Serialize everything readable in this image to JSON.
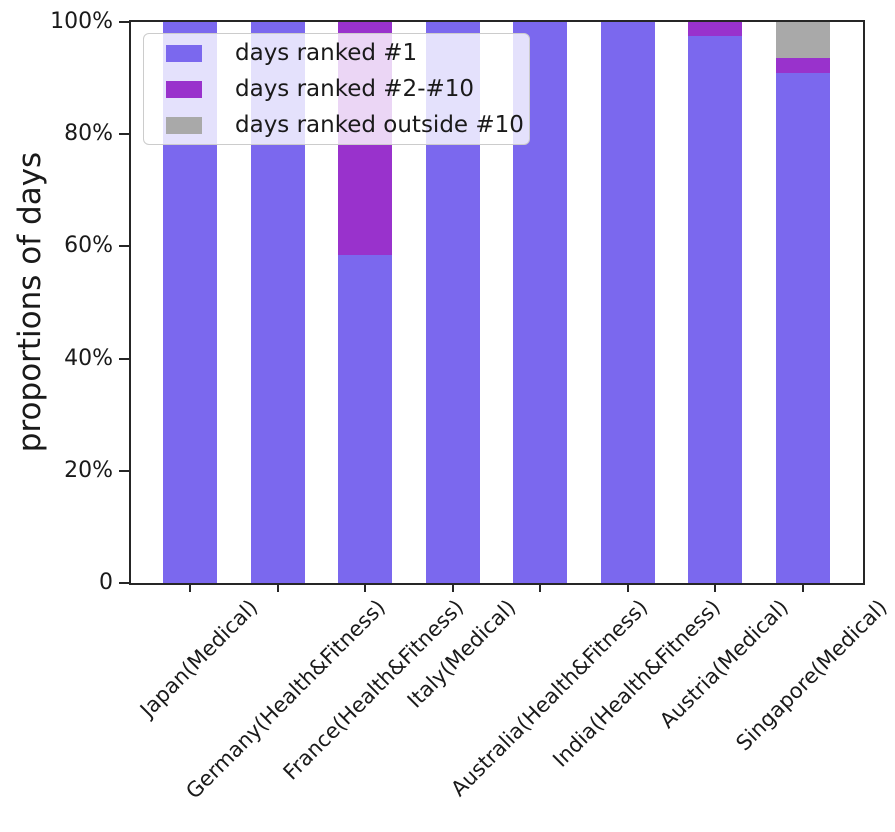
{
  "chart_data": {
    "type": "bar",
    "stacked": true,
    "title": "",
    "xlabel": "",
    "ylabel": "proportions of days",
    "categories": [
      "Japan(Medical)",
      "Germany(Health&Fitness)",
      "France(Health&Fitness)",
      "Italy(Medical)",
      "Australia(Health&Fitness)",
      "India(Health&Fitness)",
      "Austria(Medical)",
      "Singapore(Medical)"
    ],
    "series": [
      {
        "name": "days ranked #1",
        "color": "#7B68EE",
        "values": [
          100,
          100,
          58.5,
          100,
          100,
          100,
          97.5,
          91
        ]
      },
      {
        "name": "days ranked #2-#10",
        "color": "#9932CC",
        "values": [
          0,
          0,
          41.5,
          0,
          0,
          0,
          2.5,
          2.5
        ]
      },
      {
        "name": "days ranked outside #10",
        "color": "#A9A9A9",
        "values": [
          0,
          0,
          0,
          0,
          0,
          0,
          0,
          6.5
        ]
      }
    ],
    "ylim": [
      0,
      100
    ],
    "yticks": [
      {
        "value": 0,
        "label": "0"
      },
      {
        "value": 20,
        "label": "20%"
      },
      {
        "value": 40,
        "label": "40%"
      },
      {
        "value": 60,
        "label": "60%"
      },
      {
        "value": 80,
        "label": "80%"
      },
      {
        "value": 100,
        "label": "100%"
      }
    ],
    "x_tick_rotation_deg": 45,
    "legend_position": "upper left",
    "grid": false,
    "axis_color": "#262626",
    "background_color": "#ffffff"
  }
}
